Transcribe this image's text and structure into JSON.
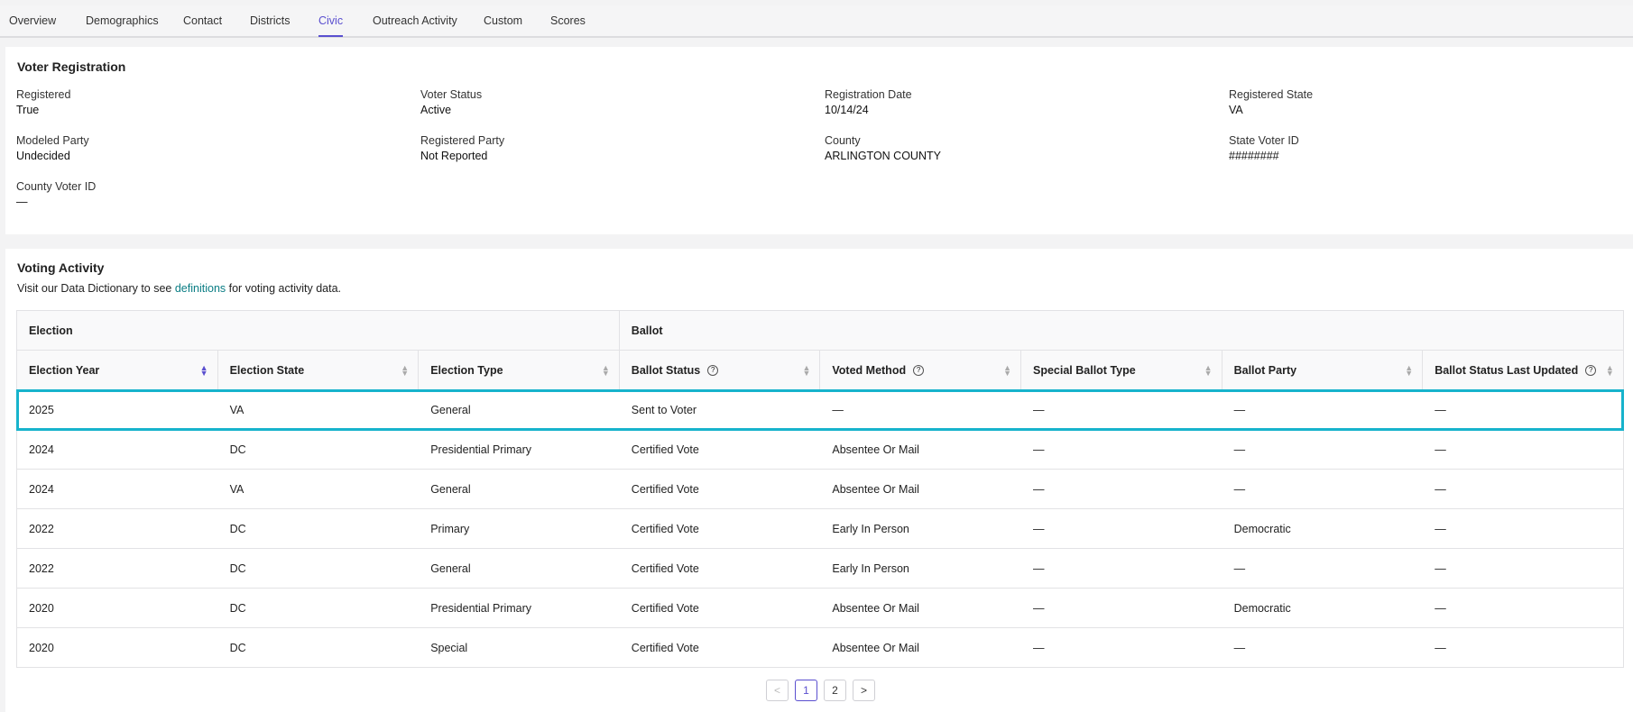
{
  "tabs": [
    "Overview",
    "Demographics",
    "Contact",
    "Districts",
    "Civic",
    "Outreach Activity",
    "Custom",
    "Scores"
  ],
  "active_tab": 4,
  "registration": {
    "title": "Voter Registration",
    "fields": [
      {
        "label": "Registered",
        "value": "True"
      },
      {
        "label": "Voter Status",
        "value": "Active"
      },
      {
        "label": "Registration Date",
        "value": "10/14/24"
      },
      {
        "label": "Registered State",
        "value": "VA"
      },
      {
        "label": "Modeled Party",
        "value": "Undecided"
      },
      {
        "label": "Registered Party",
        "value": "Not Reported"
      },
      {
        "label": "County",
        "value": "ARLINGTON COUNTY"
      },
      {
        "label": "State Voter ID",
        "value": "########"
      },
      {
        "label": "County Voter ID",
        "value": "—"
      }
    ]
  },
  "activity": {
    "title": "Voting Activity",
    "intro": [
      "Visit our Data Dictionary to see ",
      "definitions",
      " for voting activity data."
    ],
    "groups": [
      {
        "label": "Election",
        "span": 3
      },
      {
        "label": "Ballot",
        "span": 5
      }
    ],
    "columns": [
      {
        "label": "Election Year",
        "help": false,
        "sorted": true
      },
      {
        "label": "Election State",
        "help": false,
        "sorted": false
      },
      {
        "label": "Election Type",
        "help": false,
        "sorted": false
      },
      {
        "label": "Ballot Status",
        "help": true,
        "sorted": false
      },
      {
        "label": "Voted Method",
        "help": true,
        "sorted": false
      },
      {
        "label": "Special Ballot Type",
        "help": false,
        "sorted": false
      },
      {
        "label": "Ballot Party",
        "help": false,
        "sorted": false
      },
      {
        "label": "Ballot Status Last Updated",
        "help": true,
        "sorted": false
      }
    ],
    "rows": [
      [
        "2025",
        "VA",
        "General",
        "Sent to Voter",
        "—",
        "—",
        "—",
        "—"
      ],
      [
        "2024",
        "DC",
        "Presidential Primary",
        "Certified Vote",
        "Absentee Or Mail",
        "—",
        "—",
        "—"
      ],
      [
        "2024",
        "VA",
        "General",
        "Certified Vote",
        "Absentee Or Mail",
        "—",
        "—",
        "—"
      ],
      [
        "2022",
        "DC",
        "Primary",
        "Certified Vote",
        "Early In Person",
        "—",
        "Democratic",
        "—"
      ],
      [
        "2022",
        "DC",
        "General",
        "Certified Vote",
        "Early In Person",
        "—",
        "—",
        "—"
      ],
      [
        "2020",
        "DC",
        "Presidential Primary",
        "Certified Vote",
        "Absentee Or Mail",
        "—",
        "Democratic",
        "—"
      ],
      [
        "2020",
        "DC",
        "Special",
        "Certified Vote",
        "Absentee Or Mail",
        "—",
        "—",
        "—"
      ]
    ],
    "highlighted_row": 0,
    "pagination": {
      "prev": "<",
      "pages": [
        "1",
        "2"
      ],
      "current": 0,
      "next": ">"
    }
  }
}
